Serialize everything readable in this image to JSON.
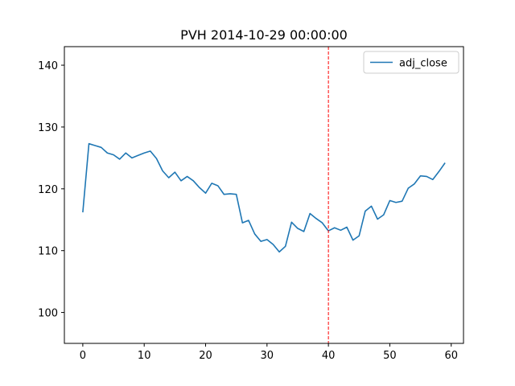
{
  "chart_data": {
    "type": "line",
    "title": "PVH 2014-10-29 00:00:00",
    "xlabel": "",
    "ylabel": "",
    "xlim": [
      -3,
      62
    ],
    "ylim": [
      95,
      143
    ],
    "xticks": [
      0,
      10,
      20,
      30,
      40,
      50,
      60
    ],
    "yticks": [
      100,
      110,
      120,
      130,
      140
    ],
    "grid": false,
    "legend_position": "top-right",
    "series": [
      {
        "name": "adj_close",
        "color": "#1f77b4",
        "x": [
          0,
          1,
          2,
          3,
          4,
          5,
          6,
          7,
          8,
          9,
          10,
          11,
          12,
          13,
          14,
          15,
          16,
          17,
          18,
          19,
          20,
          21,
          22,
          23,
          24,
          25,
          26,
          27,
          28,
          29,
          30,
          31,
          32,
          33,
          34,
          35,
          36,
          37,
          38,
          39,
          40,
          41,
          42,
          43,
          44,
          45,
          46,
          47,
          48,
          49,
          50,
          51,
          52,
          53,
          54,
          55,
          56,
          57,
          58,
          59
        ],
        "values": [
          116.2,
          127.3,
          127.0,
          126.7,
          125.8,
          125.5,
          124.8,
          125.8,
          125.0,
          125.4,
          125.8,
          126.1,
          124.9,
          122.9,
          121.8,
          122.7,
          121.3,
          122.0,
          121.3,
          120.2,
          119.3,
          120.9,
          120.5,
          119.1,
          119.2,
          119.1,
          114.5,
          114.9,
          112.7,
          111.5,
          111.8,
          111.0,
          109.8,
          110.7,
          114.6,
          113.6,
          113.1,
          116.0,
          115.2,
          114.5,
          113.2,
          113.7,
          113.3,
          113.8,
          111.7,
          112.4,
          116.4,
          117.2,
          115.1,
          115.8,
          118.1,
          117.8,
          118.0,
          120.1,
          120.8,
          122.1,
          122.0,
          121.5,
          122.8,
          124.2
        ]
      }
    ],
    "annotations": [
      {
        "type": "vline",
        "x": 40,
        "color": "#ff0000",
        "style": "dashed"
      }
    ]
  }
}
